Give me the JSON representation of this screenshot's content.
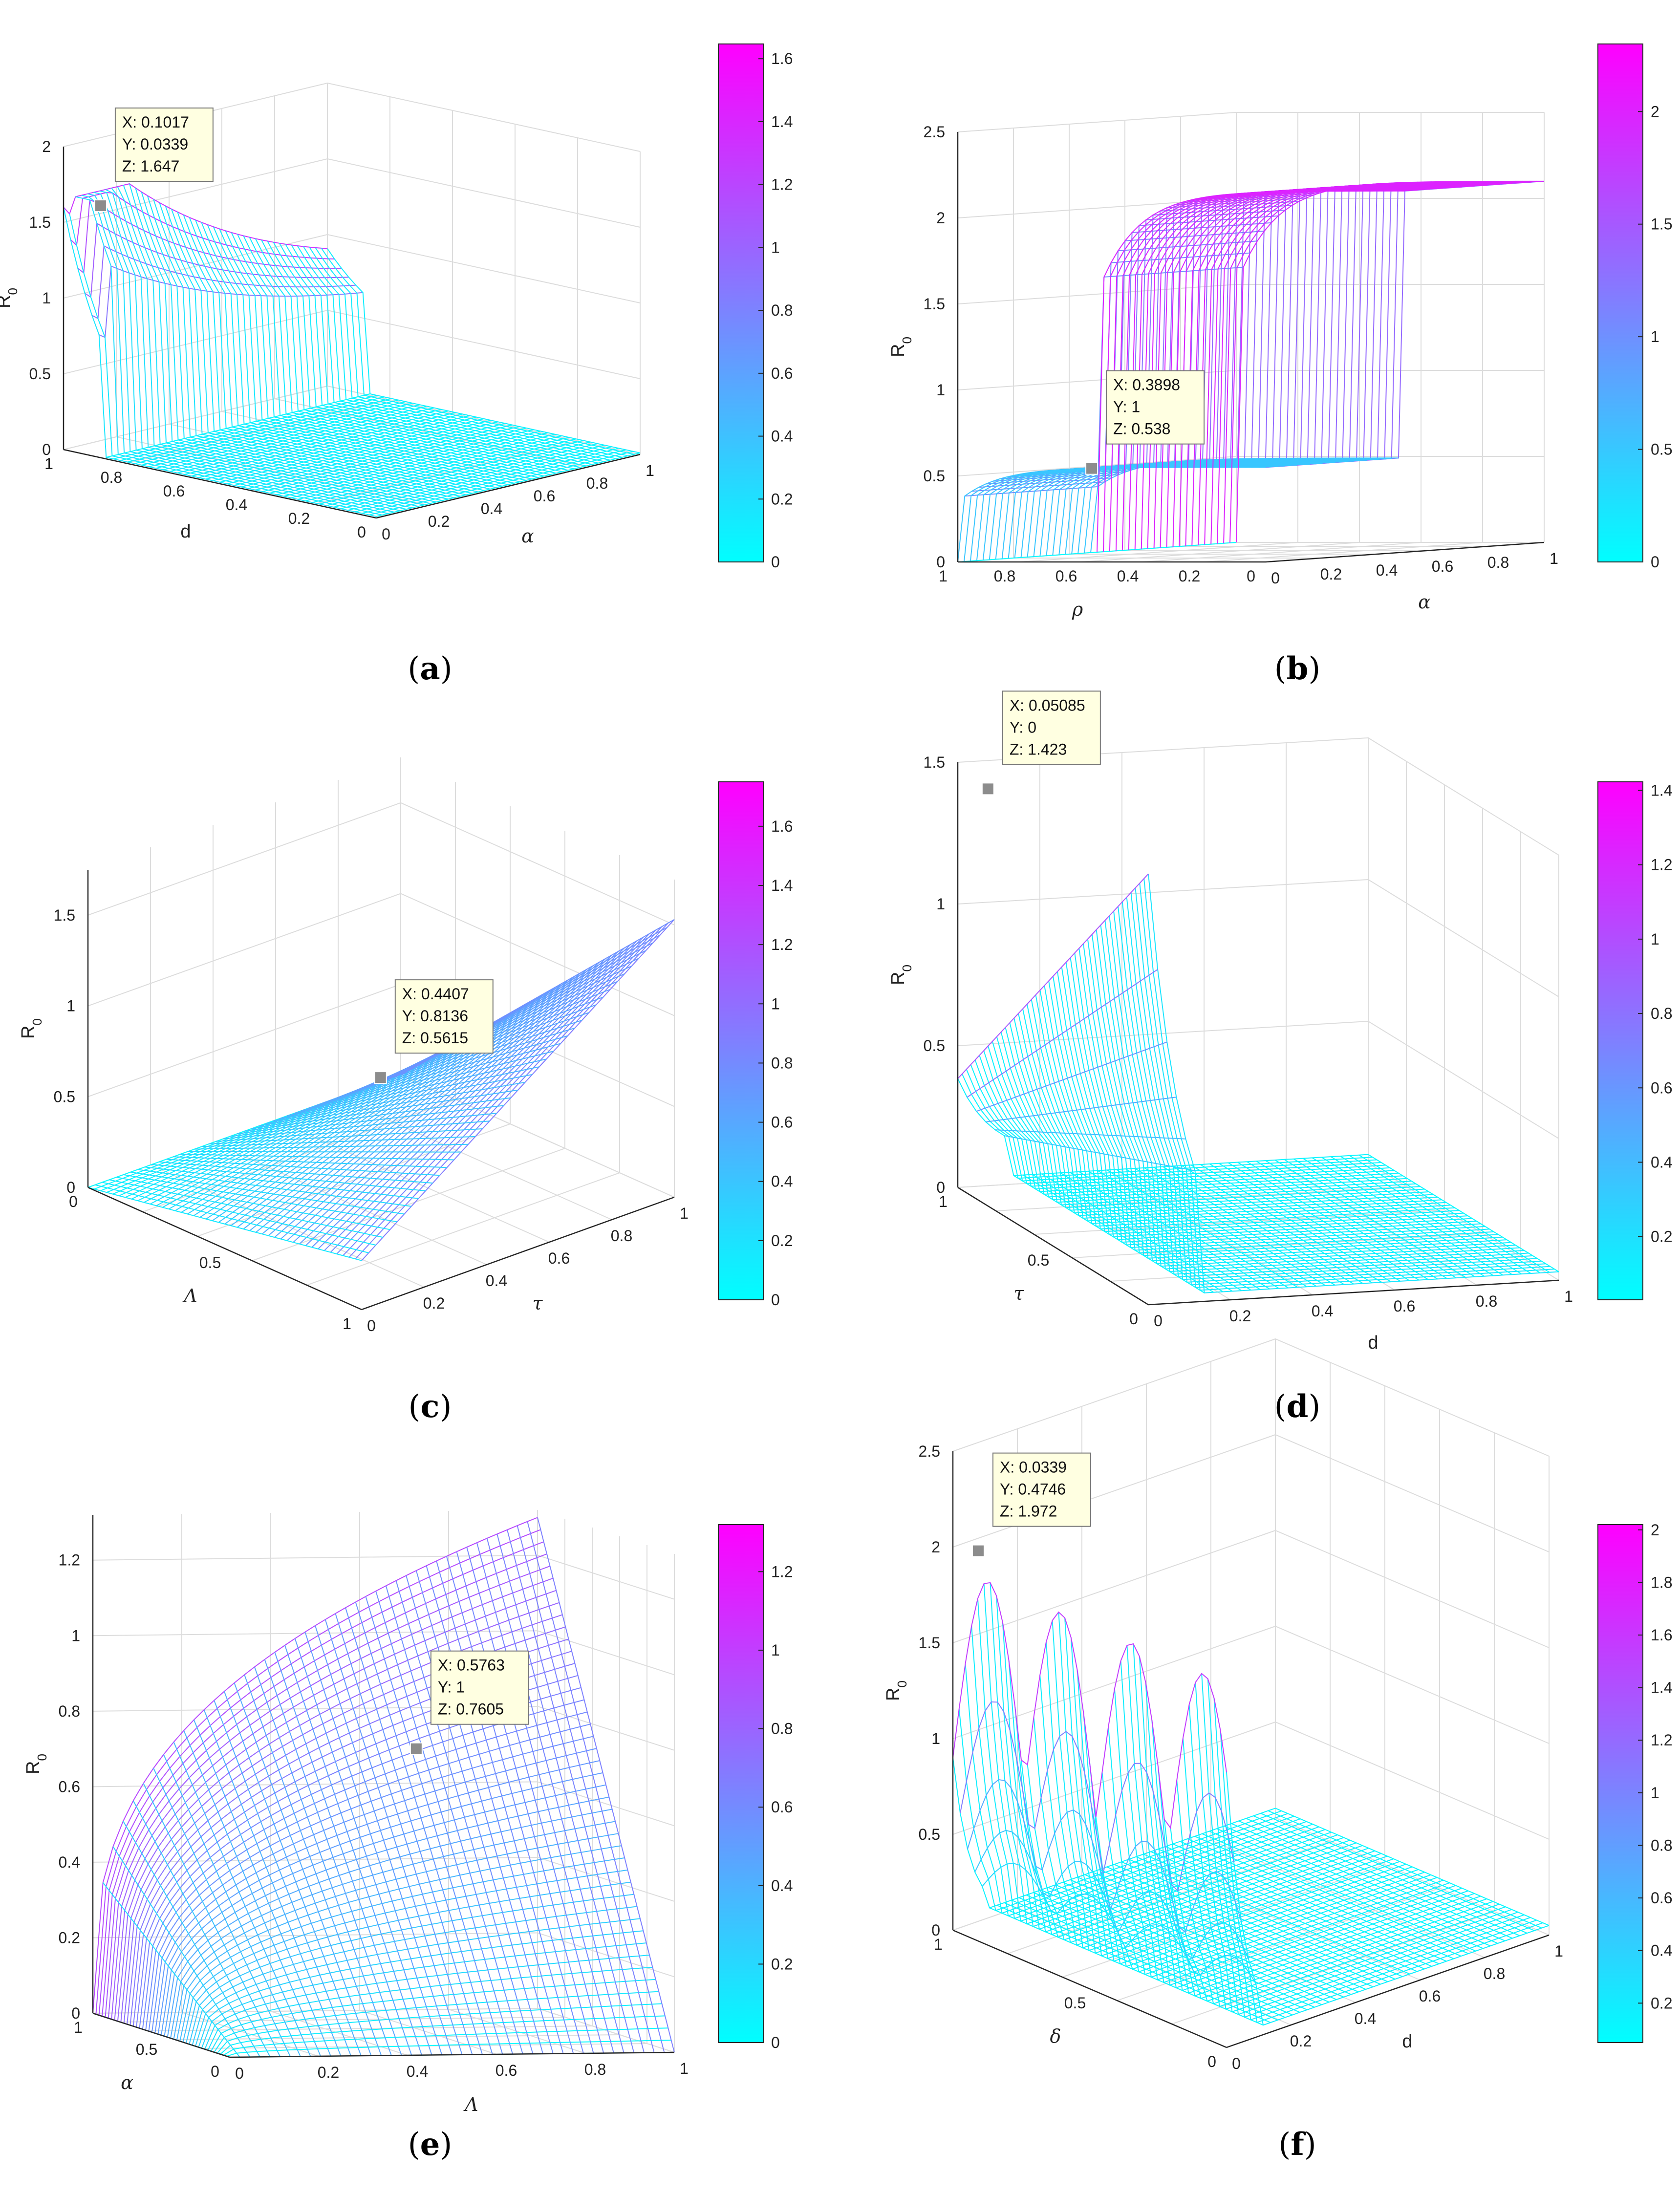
{
  "figure": {
    "panels": [
      "a",
      "b",
      "c",
      "d",
      "e",
      "f"
    ]
  },
  "colors": {
    "low": "#00ffff",
    "high": "#ff00ff",
    "grid": "#dcdcdc",
    "axis": "#262626",
    "datatip_bg": "#ffffe1",
    "datatip_marker": "#8c8c8c"
  },
  "chart_data": [
    {
      "panel": "a",
      "type": "surface3d",
      "caption_letter": "a",
      "zlabel": "R",
      "zlabel_sub": "0",
      "axis1_label": "d",
      "axis2_label": "α",
      "z_ticks": [
        "0",
        "0.5",
        "1",
        "1.5",
        "2"
      ],
      "axis1_ticks": [
        "1",
        "0.8",
        "0.6",
        "0.4",
        "0.2",
        "0"
      ],
      "axis2_ticks": [
        "0",
        "0.2",
        "0.4",
        "0.6",
        "0.8",
        "1"
      ],
      "colorbar": {
        "min": 0,
        "max": 1.647,
        "ticks": [
          "0",
          "0.2",
          "0.4",
          "0.6",
          "0.8",
          "1",
          "1.2",
          "1.4",
          "1.6"
        ]
      },
      "datatip": {
        "x_label": "X: 0.1017",
        "y_label": "Y: 0.0339",
        "z_label": "Z: 1.647",
        "x": 0.1017,
        "y": 0.0339,
        "z": 1.647
      }
    },
    {
      "panel": "b",
      "type": "surface3d",
      "caption_letter": "b",
      "zlabel": "R",
      "zlabel_sub": "0",
      "axis1_label": "ρ",
      "axis2_label": "α",
      "z_ticks": [
        "0",
        "0.5",
        "1",
        "1.5",
        "2",
        "2.5"
      ],
      "axis1_ticks": [
        "1",
        "0.8",
        "0.6",
        "0.4",
        "0.2",
        "0"
      ],
      "axis2_ticks": [
        "0",
        "0.2",
        "0.4",
        "0.6",
        "0.8",
        "1"
      ],
      "colorbar": {
        "min": 0,
        "max": 2.3,
        "ticks": [
          "0",
          "0.5",
          "1",
          "1.5",
          "2"
        ]
      },
      "datatip": {
        "x_label": "X: 0.3898",
        "y_label": "Y: 1",
        "z_label": "Z: 0.538",
        "x": 0.3898,
        "y": 1,
        "z": 0.538
      }
    },
    {
      "panel": "c",
      "type": "surface3d",
      "caption_letter": "c",
      "zlabel": "R",
      "zlabel_sub": "0",
      "axis1_label": "Λ",
      "axis2_label": "τ",
      "z_ticks": [
        "0",
        "0.5",
        "1",
        "1.5"
      ],
      "axis1_ticks": [
        "0",
        "0.5",
        "1"
      ],
      "axis2_ticks": [
        "0",
        "0.2",
        "0.4",
        "0.6",
        "0.8",
        "1"
      ],
      "colorbar": {
        "min": 0,
        "max": 1.75,
        "ticks": [
          "0",
          "0.2",
          "0.4",
          "0.6",
          "0.8",
          "1",
          "1.2",
          "1.4",
          "1.6"
        ]
      },
      "datatip": {
        "x_label": "X: 0.4407",
        "y_label": "Y: 0.8136",
        "z_label": "Z: 0.5615",
        "x": 0.4407,
        "y": 0.8136,
        "z": 0.5615
      }
    },
    {
      "panel": "d",
      "type": "surface3d",
      "caption_letter": "d",
      "zlabel": "R",
      "zlabel_sub": "0",
      "axis1_label": "τ",
      "axis2_label": "d",
      "z_ticks": [
        "0",
        "0.5",
        "1",
        "1.5"
      ],
      "axis1_ticks": [
        "1",
        "0.5",
        "0"
      ],
      "axis2_ticks": [
        "0",
        "0.2",
        "0.4",
        "0.6",
        "0.8",
        "1"
      ],
      "colorbar": {
        "min": 0.03,
        "max": 1.423,
        "ticks": [
          "0.2",
          "0.4",
          "0.6",
          "0.8",
          "1",
          "1.2",
          "1.4"
        ]
      },
      "datatip": {
        "x_label": "X: 0.05085",
        "y_label": "Y: 0",
        "z_label": "Z: 1.423",
        "x": 0.05085,
        "y": 0,
        "z": 1.423
      }
    },
    {
      "panel": "e",
      "type": "surface3d",
      "caption_letter": "e",
      "zlabel": "R",
      "zlabel_sub": "0",
      "axis1_label": "α",
      "axis2_label": "Λ",
      "z_ticks": [
        "0",
        "0.2",
        "0.4",
        "0.6",
        "0.8",
        "1",
        "1.2"
      ],
      "axis1_ticks": [
        "1",
        "0.5",
        "0"
      ],
      "axis2_ticks": [
        "0",
        "0.2",
        "0.4",
        "0.6",
        "0.8",
        "1"
      ],
      "colorbar": {
        "min": 0,
        "max": 1.32,
        "ticks": [
          "0",
          "0.2",
          "0.4",
          "0.6",
          "0.8",
          "1",
          "1.2"
        ]
      },
      "datatip": {
        "x_label": "X: 0.5763",
        "y_label": "Y: 1",
        "z_label": "Z: 0.7605",
        "x": 0.5763,
        "y": 1,
        "z": 0.7605
      }
    },
    {
      "panel": "f",
      "type": "surface3d",
      "caption_letter": "f",
      "zlabel": "R",
      "zlabel_sub": "0",
      "axis1_label": "δ",
      "axis2_label": "d",
      "z_ticks": [
        "0",
        "0.5",
        "1",
        "1.5",
        "2",
        "2.5"
      ],
      "axis1_ticks": [
        "1",
        "0.5",
        "0"
      ],
      "axis2_ticks": [
        "0",
        "0.2",
        "0.4",
        "0.6",
        "0.8",
        "1"
      ],
      "colorbar": {
        "min": 0.05,
        "max": 2.02,
        "ticks": [
          "0.2",
          "0.4",
          "0.6",
          "0.8",
          "1",
          "1.2",
          "1.4",
          "1.6",
          "1.8",
          "2"
        ]
      },
      "datatip": {
        "x_label": "X: 0.0339",
        "y_label": "Y: 0.4746",
        "z_label": "Z: 1.972",
        "x": 0.0339,
        "y": 0.4746,
        "z": 1.972
      }
    }
  ]
}
